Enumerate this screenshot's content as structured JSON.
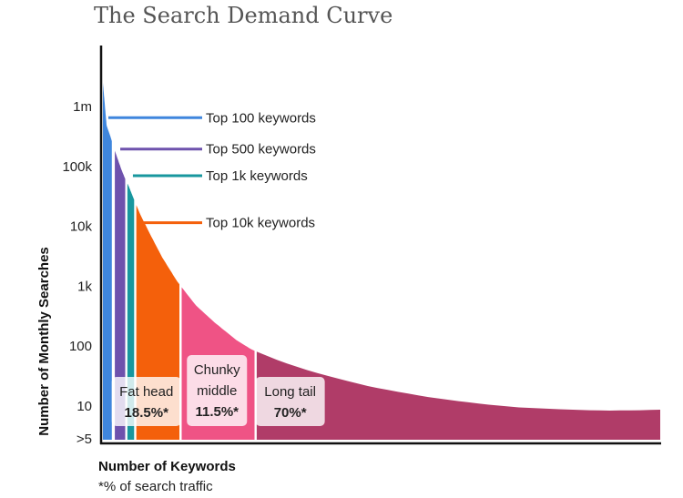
{
  "chart_data": {
    "type": "area",
    "title": "The Search Demand Curve",
    "xlabel": "Number of Keywords",
    "ylabel": "Number of Monthly Searches",
    "note": "*% of search traffic",
    "y_scale": "log",
    "y_ticks": [
      {
        "label": "1m",
        "value": 1000000
      },
      {
        "label": "100k",
        "value": 100000
      },
      {
        "label": "10k",
        "value": 10000
      },
      {
        "label": "1k",
        "value": 1000
      },
      {
        "label": "100",
        "value": 100
      },
      {
        "label": "10",
        "value": 10
      },
      {
        "label": ">5",
        "value": 5
      }
    ],
    "curve": [
      [
        0,
        2500000
      ],
      [
        0.5,
        480000
      ],
      [
        1,
        320000
      ],
      [
        1.5,
        200000
      ],
      [
        2,
        132000
      ],
      [
        2.5,
        88000
      ],
      [
        3,
        62000
      ],
      [
        3.5,
        46000
      ],
      [
        4,
        32000
      ],
      [
        5,
        16000
      ],
      [
        6.5,
        6800
      ],
      [
        8,
        3000
      ],
      [
        10,
        1200
      ],
      [
        12.5,
        480
      ],
      [
        15,
        250
      ],
      [
        18,
        125
      ],
      [
        20,
        88
      ],
      [
        24,
        55
      ],
      [
        28,
        38
      ],
      [
        32,
        28
      ],
      [
        36,
        21
      ],
      [
        40,
        17
      ],
      [
        44,
        14
      ],
      [
        48,
        12
      ],
      [
        52,
        10.5
      ],
      [
        56,
        9.5
      ],
      [
        60,
        9
      ],
      [
        64,
        8.6
      ],
      [
        68,
        8.4
      ],
      [
        72,
        8.5
      ],
      [
        75,
        8.7
      ]
    ],
    "segments": [
      {
        "name": "Top 100 keywords",
        "x_range": [
          0,
          1.2
        ],
        "color": "#3f86dd"
      },
      {
        "name": "Top 500 keywords",
        "x_range": [
          1.6,
          3.0
        ],
        "color": "#6e52ad"
      },
      {
        "name": "Top 1k keywords",
        "x_range": [
          3.3,
          4.2
        ],
        "color": "#18979e"
      },
      {
        "name": "Top 10k keywords",
        "x_range": [
          4.5,
          10.3
        ],
        "color": "#f4600b"
      },
      {
        "name": "Chunky middle",
        "x_range": [
          10.6,
          20.4
        ],
        "color": "#ef5385"
      },
      {
        "name": "Long tail",
        "x_range": [
          20.7,
          75
        ],
        "color": "#b03c68"
      }
    ],
    "legend": [
      {
        "label": "Top 100 keywords",
        "color": "#3f86dd",
        "value": 650000
      },
      {
        "label": "Top 500 keywords",
        "color": "#6e52ad",
        "value": 195000
      },
      {
        "label": "Top 1k keywords",
        "color": "#18979e",
        "value": 70000
      },
      {
        "label": "Top 10k keywords",
        "color": "#f4600b",
        "value": 11500
      }
    ],
    "groups": [
      {
        "label": "Fat head",
        "share": "18.5%*",
        "x_center": 5.85
      },
      {
        "label": "Chunky\nmiddle",
        "share": "11.5%*",
        "x_center": 15.35
      },
      {
        "label": "Long tail",
        "share": "70%*",
        "x_center": 25.2
      }
    ],
    "colors": {
      "axis": "#111111",
      "label_box": "#ffffff"
    }
  }
}
